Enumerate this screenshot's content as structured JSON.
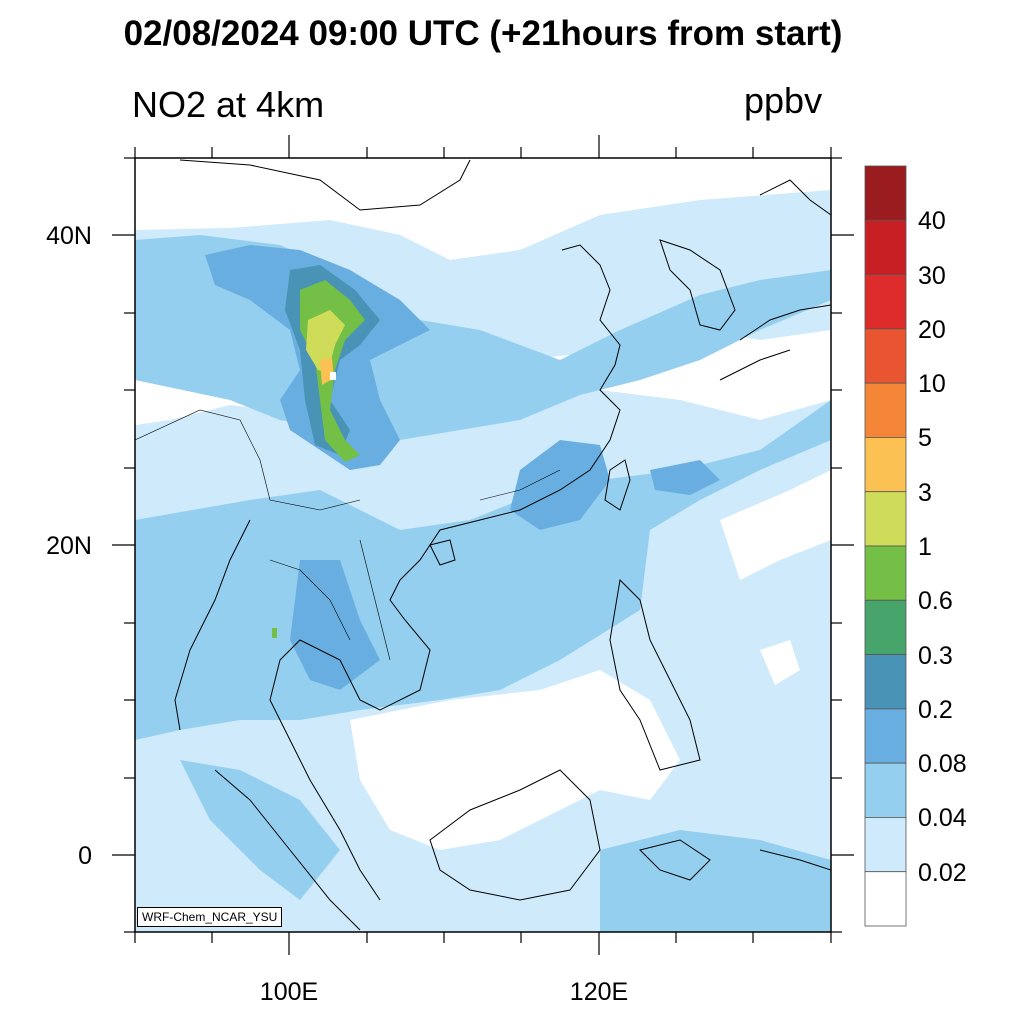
{
  "title": "02/08/2024 09:00 UTC (+21hours from start)",
  "left_string": "NO2 at 4km",
  "right_string": "ppbv",
  "credit": "WRF-Chem_NCAR_YSU",
  "map": {
    "lon_range": [
      90,
      135
    ],
    "lat_range": [
      -5,
      45
    ],
    "lat_ticks": [
      {
        "label": "40N",
        "value": 40
      },
      {
        "label": "20N",
        "value": 20
      },
      {
        "label": "0",
        "value": 0
      }
    ],
    "lon_ticks": [
      {
        "label": "100E",
        "value": 100
      },
      {
        "label": "120E",
        "value": 120
      }
    ]
  },
  "colorbar": {
    "labels": [
      "40",
      "30",
      "20",
      "10",
      "5",
      "3",
      "1",
      "0.6",
      "0.3",
      "0.2",
      "0.08",
      "0.04",
      "0.02"
    ],
    "colors": [
      "#9b1c1e",
      "#c81f25",
      "#de2b2b",
      "#e85530",
      "#f58537",
      "#fbc153",
      "#cfdc5a",
      "#74bf45",
      "#47a56b",
      "#4893b6",
      "#69aee0",
      "#95cfef",
      "#cfeafb",
      "#ffffff"
    ]
  }
}
